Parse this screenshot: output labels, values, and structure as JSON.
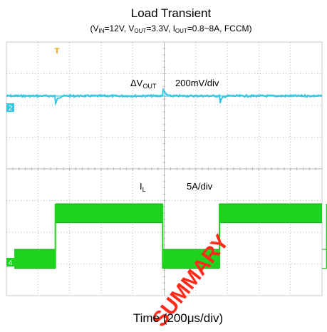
{
  "chart_data": {
    "type": "line",
    "title": "Load Transient",
    "subtitle": {
      "p0": "(V",
      "s0": "IN",
      "p1": "=12V, V",
      "s1": "OUT",
      "p2": "=3.3V, I",
      "s2": "OUT",
      "p3": "=0.8~8A, FCCM)"
    },
    "xlabel": "Time (200μs/div)",
    "grid": true,
    "divisions": {
      "x": 10,
      "y": 8
    },
    "channels": [
      {
        "id": "2",
        "name_main": "ΔV",
        "name_sub": "OUT",
        "scale": "200mV/div",
        "color": "#32c8e6",
        "baseline_div": 1.7,
        "noise_div": 0.06,
        "events_us": [
          {
            "t": 0,
            "kind": "undershoot"
          },
          {
            "t": 680,
            "kind": "overshoot"
          },
          {
            "t": 1040,
            "kind": "undershoot"
          },
          {
            "t": 1720,
            "kind": "overshoot"
          }
        ]
      },
      {
        "id": "4",
        "name_main": "I",
        "name_sub": "L",
        "scale": "5A/div",
        "color": "#1ed21e",
        "low_A": 0.8,
        "high_A": 8,
        "ripple_A": 3,
        "segments_us": [
          {
            "t0": -260,
            "t1": 0,
            "level": "low"
          },
          {
            "t0": 0,
            "t1": 680,
            "level": "high"
          },
          {
            "t0": 680,
            "t1": 1040,
            "level": "low"
          },
          {
            "t0": 1040,
            "t1": 1720,
            "level": "high"
          },
          {
            "t0": 1720,
            "t1": 1960,
            "level": "low"
          }
        ]
      }
    ],
    "trigger_marker": "T",
    "watermark": "SUMMARY"
  }
}
